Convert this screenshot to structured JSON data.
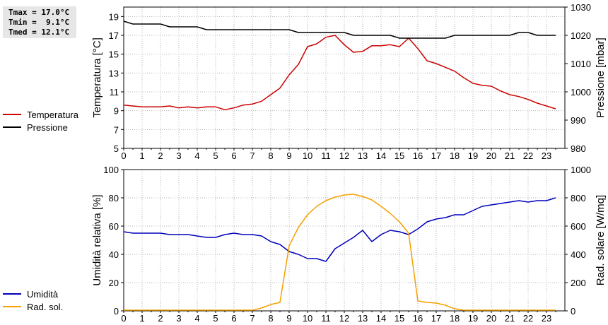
{
  "stats": {
    "tmax": "Tmax = 17.0°C",
    "tmin": "Tmin =  9.1°C",
    "tmed": "Tmed = 12.1°C"
  },
  "chart_data": [
    {
      "type": "line",
      "x_ticks": [
        "0",
        "1",
        "2",
        "3",
        "4",
        "5",
        "6",
        "7",
        "8",
        "9",
        "10",
        "11",
        "12",
        "13",
        "14",
        "15",
        "16",
        "17",
        "18",
        "19",
        "20",
        "21",
        "22",
        "23"
      ],
      "xlim": [
        0,
        24
      ],
      "ylabel": "Temperatura [°C]",
      "ylim": [
        5,
        20
      ],
      "y_ticks": [
        5,
        7,
        9,
        11,
        13,
        15,
        17,
        19
      ],
      "ylabel_right": "Pressione [mbar]",
      "ylim_right": [
        980,
        1030
      ],
      "y_ticks_right": [
        980,
        990,
        1000,
        1010,
        1020,
        1030
      ],
      "grid": true,
      "series": [
        {
          "name": "Temperatura",
          "axis": "left",
          "color": "#cc0000",
          "x": [
            0,
            0.5,
            1,
            1.5,
            2,
            2.5,
            3,
            3.5,
            4,
            4.5,
            5,
            5.5,
            6,
            6.5,
            7,
            7.5,
            8,
            8.5,
            9,
            9.5,
            10,
            10.5,
            11,
            11.5,
            12,
            12.5,
            13,
            13.5,
            14,
            14.5,
            15,
            15.5,
            16,
            16.5,
            17,
            17.5,
            18,
            18.5,
            19,
            19.5,
            20,
            20.5,
            21,
            21.5,
            22,
            22.5,
            23,
            23.5
          ],
          "values": [
            9.6,
            9.5,
            9.4,
            9.4,
            9.4,
            9.5,
            9.3,
            9.4,
            9.3,
            9.4,
            9.4,
            9.1,
            9.3,
            9.6,
            9.7,
            10.0,
            10.7,
            11.4,
            12.8,
            13.9,
            15.8,
            16.1,
            16.8,
            17.0,
            16.0,
            15.2,
            15.3,
            15.9,
            15.9,
            16.0,
            15.8,
            16.7,
            15.6,
            14.3,
            14.0,
            13.6,
            13.2,
            12.5,
            11.9,
            11.7,
            11.6,
            11.1,
            10.7,
            10.5,
            10.2,
            9.8,
            9.5,
            9.2
          ]
        },
        {
          "name": "Pressione",
          "axis": "right",
          "color": "#000000",
          "x": [
            0,
            0.5,
            1,
            1.5,
            2,
            2.5,
            3,
            3.5,
            4,
            4.5,
            5,
            5.5,
            6,
            6.5,
            7,
            7.5,
            8,
            8.5,
            9,
            9.5,
            10,
            10.5,
            11,
            11.5,
            12,
            12.5,
            13,
            13.5,
            14,
            14.5,
            15,
            15.5,
            16,
            16.5,
            17,
            17.5,
            18,
            18.5,
            19,
            19.5,
            20,
            20.5,
            21,
            21.5,
            22,
            22.5,
            23,
            23.5
          ],
          "values": [
            1025,
            1024,
            1024,
            1024,
            1024,
            1023,
            1023,
            1023,
            1023,
            1022,
            1022,
            1022,
            1022,
            1022,
            1022,
            1022,
            1022,
            1022,
            1022,
            1021,
            1021,
            1021,
            1021,
            1021,
            1021,
            1020,
            1020,
            1020,
            1020,
            1020,
            1019,
            1019,
            1019,
            1019,
            1019,
            1019,
            1020,
            1020,
            1020,
            1020,
            1020,
            1020,
            1020,
            1021,
            1021,
            1020,
            1020,
            1020
          ]
        }
      ]
    },
    {
      "type": "line",
      "x_ticks": [
        "0",
        "1",
        "2",
        "3",
        "4",
        "5",
        "6",
        "7",
        "8",
        "9",
        "10",
        "11",
        "12",
        "13",
        "14",
        "15",
        "16",
        "17",
        "18",
        "19",
        "20",
        "21",
        "22",
        "23"
      ],
      "xlim": [
        0,
        24
      ],
      "ylabel": "Umidità relativa [%]",
      "ylim": [
        0,
        100
      ],
      "y_ticks": [
        0,
        20,
        40,
        60,
        80,
        100
      ],
      "ylabel_right": "Rad. solare [W/mq]",
      "ylim_right": [
        0,
        1000
      ],
      "y_ticks_right": [
        0,
        200,
        400,
        600,
        800,
        1000
      ],
      "grid": true,
      "series": [
        {
          "name": "Umidità",
          "axis": "left",
          "color": "#0000bb",
          "x": [
            0,
            0.5,
            1,
            1.5,
            2,
            2.5,
            3,
            3.5,
            4,
            4.5,
            5,
            5.5,
            6,
            6.5,
            7,
            7.5,
            8,
            8.5,
            9,
            9.5,
            10,
            10.5,
            11,
            11.5,
            12,
            12.5,
            13,
            13.5,
            14,
            14.5,
            15,
            15.5,
            16,
            16.5,
            17,
            17.5,
            18,
            18.5,
            19,
            19.5,
            20,
            20.5,
            21,
            21.5,
            22,
            22.5,
            23,
            23.5
          ],
          "values": [
            56,
            55,
            55,
            55,
            55,
            54,
            54,
            54,
            53,
            52,
            52,
            54,
            55,
            54,
            54,
            53,
            49,
            47,
            42,
            40,
            37,
            37,
            35,
            44,
            48,
            52,
            57,
            49,
            54,
            57,
            56,
            54,
            58,
            63,
            65,
            66,
            68,
            68,
            71,
            74,
            75,
            76,
            77,
            78,
            77,
            78,
            78,
            80
          ]
        },
        {
          "name": "Rad. sol.",
          "axis": "right",
          "color": "#f5a000",
          "x": [
            0,
            0.5,
            1,
            1.5,
            2,
            2.5,
            3,
            3.5,
            4,
            4.5,
            5,
            5.5,
            6,
            6.5,
            7,
            7.5,
            8,
            8.5,
            9,
            9.5,
            10,
            10.5,
            11,
            11.5,
            12,
            12.5,
            13,
            13.5,
            14,
            14.5,
            15,
            15.5,
            16,
            16.5,
            17,
            17.5,
            18,
            18.5,
            19,
            19.5,
            20,
            20.5,
            21,
            21.5,
            22,
            22.5,
            23,
            23.5
          ],
          "values": [
            5,
            5,
            5,
            5,
            5,
            5,
            5,
            5,
            5,
            5,
            5,
            5,
            5,
            5,
            5,
            20,
            45,
            60,
            460,
            590,
            680,
            740,
            780,
            805,
            820,
            825,
            810,
            785,
            740,
            690,
            630,
            550,
            70,
            60,
            55,
            40,
            15,
            5,
            5,
            5,
            5,
            5,
            5,
            5,
            5,
            5,
            5,
            5
          ]
        }
      ]
    }
  ]
}
